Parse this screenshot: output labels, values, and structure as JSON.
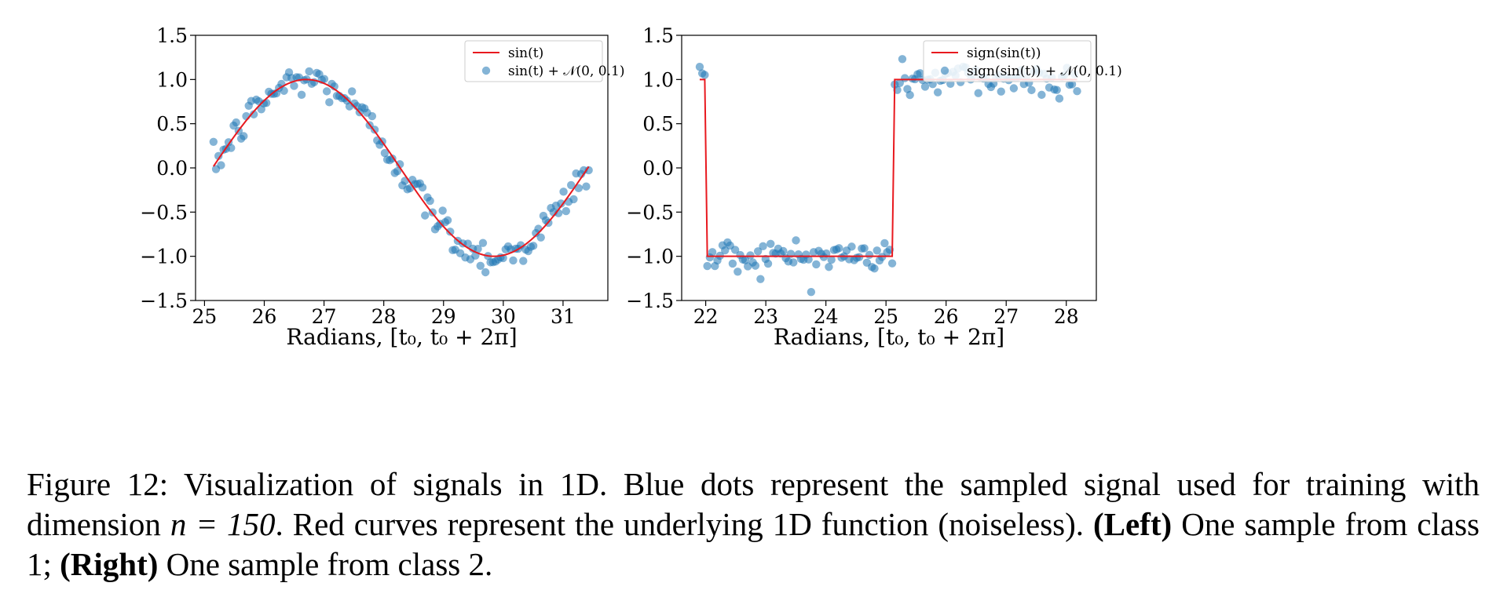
{
  "chart_data": [
    {
      "type": "scatter",
      "title": "",
      "xlabel": "Radians, [t₀, t₀ + 2π]",
      "ylabel": "",
      "xlim": [
        24.85,
        31.75
      ],
      "ylim": [
        -1.5,
        1.5
      ],
      "xticks": [
        25,
        26,
        27,
        28,
        29,
        30,
        31
      ],
      "yticks": [
        1.5,
        1.0,
        0.5,
        0.0,
        -0.5,
        -1.0,
        -1.5
      ],
      "ytick_labels": [
        "1.5",
        "1.0",
        "0.5",
        "0.0",
        "−0.5",
        "−1.0",
        "−1.5"
      ],
      "grid": false,
      "legend_position": "top-right",
      "t_range": [
        25.15,
        31.43
      ],
      "series": [
        {
          "name": "sin(t)",
          "kind": "line",
          "color": "#e8191f",
          "function": "sin"
        },
        {
          "name": "sin(t) + 𝒩(0, 0.1)",
          "kind": "scatter",
          "color": "#1f77b4",
          "n": 150,
          "noise_std": 0.1
        }
      ]
    },
    {
      "type": "scatter",
      "title": "",
      "xlabel": "Radians, [t₀, t₀ + 2π]",
      "ylabel": "",
      "xlim": [
        21.6,
        28.5
      ],
      "ylim": [
        -1.5,
        1.5
      ],
      "xticks": [
        22,
        23,
        24,
        25,
        26,
        27,
        28
      ],
      "yticks": [
        1.5,
        1.0,
        0.5,
        0.0,
        -0.5,
        -1.0,
        -1.5
      ],
      "ytick_labels": [
        "1.5",
        "1.0",
        "0.5",
        "0.0",
        "−0.5",
        "−1.0",
        "−1.5"
      ],
      "grid": false,
      "legend_position": "top-right",
      "t_range": [
        21.9,
        28.18
      ],
      "series": [
        {
          "name": "sign(sin(t))",
          "kind": "line",
          "color": "#e8191f",
          "function": "sign_sin"
        },
        {
          "name": "sign(sin(t)) + 𝒩(0, 0.1)",
          "kind": "scatter",
          "color": "#1f77b4",
          "n": 150,
          "noise_std": 0.1
        }
      ]
    }
  ],
  "caption": {
    "lead": "Figure 12: Visualization of signals in 1D. Blue dots represent the sampled signal used for training with dimension ",
    "math": "n = 150",
    "mid": ". Red curves represent the underlying 1D function (noiseless). ",
    "left_bold": "(Left)",
    "left_text": " One sample from class 1; ",
    "right_bold": "(Right)",
    "right_text": " One sample from class 2."
  }
}
